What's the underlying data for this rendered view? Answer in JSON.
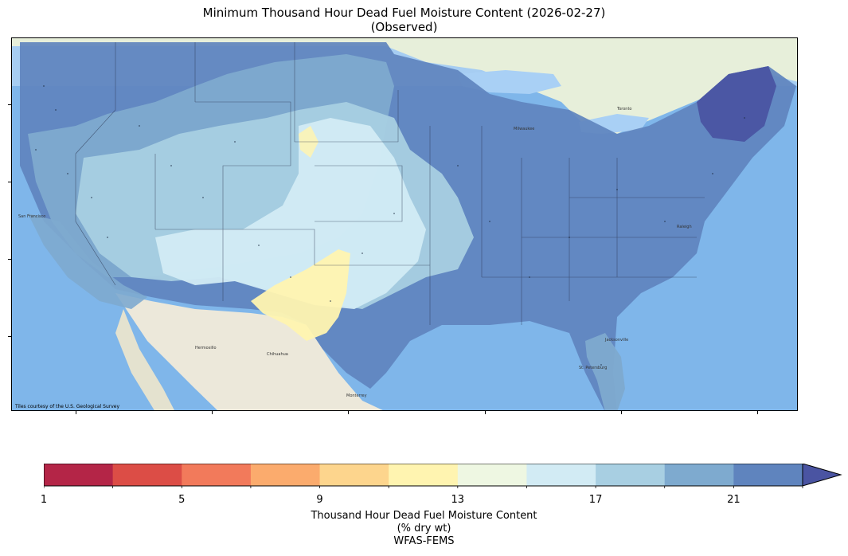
{
  "title": {
    "line1": "Minimum Thousand Hour Dead Fuel Moisture Content (2026-02-27)",
    "line2": "(Observed)"
  },
  "map": {
    "attribution": "Tiles courtesy of the U.S. Geological Survey",
    "ocean_color": "#7fb6ea",
    "land_color": "#e9efe0",
    "lake_color": "#a9d0f5",
    "cities": [
      "San Francisco",
      "Hermosillo",
      "Chihuahua",
      "Monterrey",
      "Jacksonville",
      "St. Petersburg",
      "Raleigh",
      "Milwaukee",
      "Toronto"
    ]
  },
  "colorbar": {
    "levels": [
      1,
      3,
      5,
      7,
      9,
      11,
      13,
      15,
      17,
      19,
      21,
      23
    ],
    "colors": [
      "#b42547",
      "#dc4d46",
      "#f27a5b",
      "#fbab6d",
      "#fdd58d",
      "#fff4b0",
      "#eef7e2",
      "#d2ebf4",
      "#a8cfe2",
      "#7eaacf",
      "#5f84be",
      "#4a54a2"
    ],
    "tick_labels": [
      "1",
      "5",
      "9",
      "13",
      "17",
      "21"
    ],
    "label_line1": "Thousand Hour Dead Fuel Moisture Content",
    "label_line2": "(% dry wt)",
    "label_line3": "WFAS-FEMS",
    "extend": "max"
  },
  "chart_data": {
    "type": "heatmap",
    "title": "Minimum Thousand Hour Dead Fuel Moisture Content (2026-02-27)",
    "subtitle": "(Observed)",
    "colorbar_label": "Thousand Hour Dead Fuel Moisture Content (% dry wt)",
    "source": "WFAS-FEMS",
    "range": [
      1,
      23
    ],
    "region_levels": {
      "Pacific Northwest": 21,
      "California coast": 21,
      "Great Basin": 17,
      "Rocky Mountains": 19,
      "Desert Southwest": 15,
      "Southern High Plains": 11,
      "Texas west": 11,
      "Central Plains": 15,
      "Upper Midwest": 21,
      "Southeast": 21,
      "Florida": 19,
      "Northeast": 21,
      "New England": 23
    }
  }
}
